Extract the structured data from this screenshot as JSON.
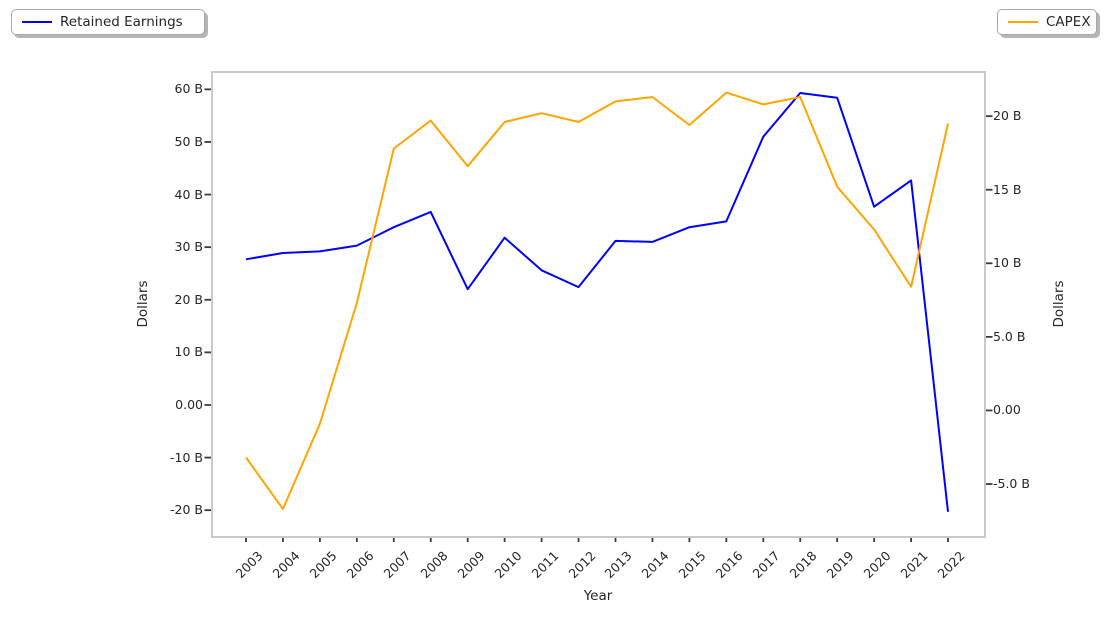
{
  "legend": {
    "left": {
      "label": "Retained Earnings",
      "color": "#0000ff"
    },
    "right": {
      "label": "CAPEX",
      "color": "#ffa500"
    }
  },
  "chart_data": {
    "type": "line",
    "title": "",
    "xlabel": "Year",
    "x": [
      2003,
      2004,
      2005,
      2006,
      2007,
      2008,
      2009,
      2010,
      2011,
      2012,
      2013,
      2014,
      2015,
      2016,
      2017,
      2018,
      2019,
      2020,
      2021,
      2022
    ],
    "x_tick_labels": [
      "2003",
      "2004",
      "2005",
      "2006",
      "2007",
      "2008",
      "2009",
      "2010",
      "2011",
      "2012",
      "2013",
      "2014",
      "2015",
      "2016",
      "2017",
      "2018",
      "2019",
      "2020",
      "2021",
      "2022"
    ],
    "series": [
      {
        "name": "Retained Earnings",
        "yaxis": "left",
        "color": "#0000ff",
        "unit": "billions of dollars",
        "values": [
          27.7,
          28.9,
          29.2,
          30.3,
          33.8,
          36.7,
          22.0,
          31.8,
          25.6,
          22.4,
          31.2,
          31.0,
          33.8,
          34.9,
          51.0,
          59.3,
          58.4,
          37.7,
          42.7,
          -20.3
        ]
      },
      {
        "name": "CAPEX",
        "yaxis": "right",
        "color": "#ffa500",
        "unit": "billions of dollars",
        "values": [
          -3.2,
          -6.7,
          -0.9,
          7.3,
          17.8,
          19.7,
          16.6,
          19.6,
          20.2,
          19.6,
          21.0,
          21.3,
          19.4,
          21.6,
          20.8,
          21.3,
          15.2,
          12.3,
          8.4,
          19.5
        ]
      }
    ],
    "left_axis": {
      "label": "Dollars",
      "tick_values": [
        60,
        50,
        40,
        30,
        20,
        10,
        0,
        -10,
        -20
      ],
      "tick_labels": [
        "60 B",
        "50 B",
        "40 B",
        "30 B",
        "20 B",
        "10 B",
        "0.00",
        "-10 B",
        "-20 B"
      ],
      "range": [
        -25.1,
        63.3
      ]
    },
    "right_axis": {
      "label": "Dollars",
      "tick_values": [
        20,
        15,
        10,
        5,
        0,
        -5
      ],
      "tick_labels": [
        "20 B",
        "15 B",
        "10 B",
        "5.0 B",
        "0.00",
        "-5.0 B"
      ],
      "range": [
        -8.6,
        23.0
      ]
    },
    "x_range": [
      2002.08,
      2023.0
    ],
    "grid": false,
    "legend_position": "outside top-left (Retained Earnings) and outside top-right (CAPEX)",
    "frame_color": "#c9c9c9",
    "tick_color": "#3a3a3a"
  }
}
